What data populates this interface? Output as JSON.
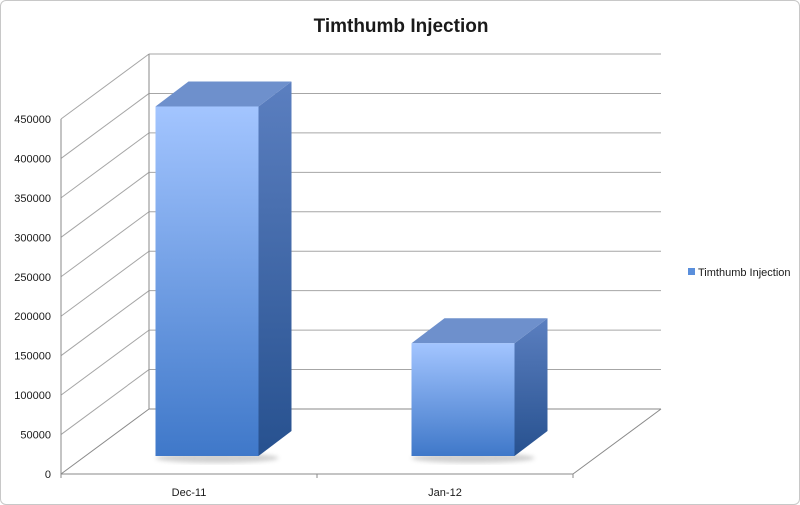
{
  "chart_data": {
    "type": "bar",
    "title": "Timthumb Injection",
    "xlabel": "",
    "ylabel": "",
    "categories": [
      "Dec-11",
      "Jan-12"
    ],
    "series": [
      {
        "name": "Timthumb Injection",
        "values": [
          443000,
          143000
        ]
      }
    ],
    "ylim": [
      0,
      450000
    ],
    "ytick_step": 50000,
    "yticks": [
      "0",
      "50000",
      "100000",
      "150000",
      "200000",
      "250000",
      "300000",
      "350000",
      "400000",
      "450000"
    ],
    "style": "3d-bar",
    "grid": true,
    "legend_position": "right",
    "colors": {
      "bar_front_top": "#a3c5ff",
      "bar_front_bottom": "#3f78c9",
      "bar_top": "#6e90cc",
      "bar_side_top": "#5b7fc0",
      "bar_side_bottom": "#27518f",
      "gridline": "#a6a6a6",
      "axis": "#8a8a8a",
      "legend_swatch": "#5a8fdc"
    }
  }
}
